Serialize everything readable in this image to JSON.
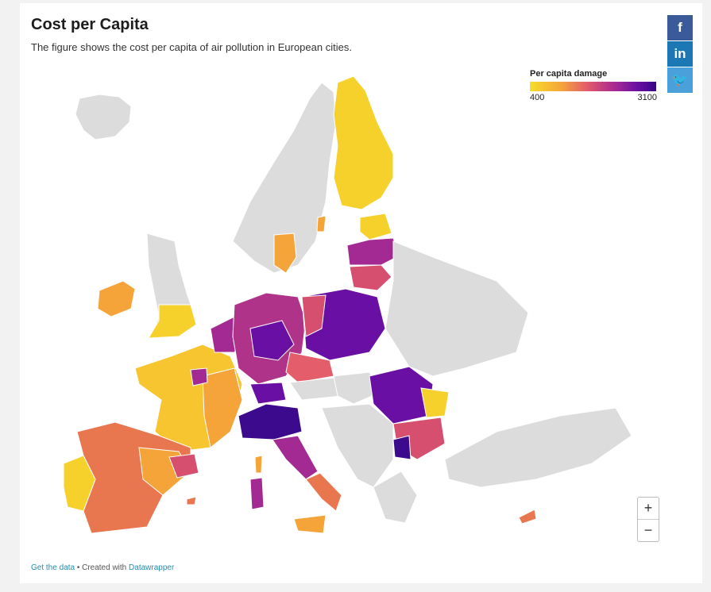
{
  "header": {
    "title": "Cost per Capita",
    "subtitle": "The figure shows the cost per capita of air pollution in European cities."
  },
  "share": {
    "facebook_glyph": "f",
    "linkedin_glyph": "in",
    "twitter_glyph": "🐦"
  },
  "legend": {
    "title": "Per capita damage",
    "min_label": "400",
    "max_label": "3100",
    "colors": [
      "#f6dd2a",
      "#f5a43a",
      "#e35d6a",
      "#b02c8f",
      "#6a0fa3",
      "#3a0385"
    ]
  },
  "zoom": {
    "in_label": "+",
    "out_label": "−"
  },
  "footer": {
    "data_link": "Get the data",
    "separator": " • Created with ",
    "credit_link": "Datawrapper"
  },
  "map_colors": {
    "nodata": "#dcdcdc",
    "low": "#f6d12c",
    "low_mid": "#f5a43a",
    "mid": "#e8774f",
    "mid_high": "#d64f6e",
    "high": "#a32a92",
    "very_high": "#6a0fa3",
    "max": "#3c0a8c"
  }
}
